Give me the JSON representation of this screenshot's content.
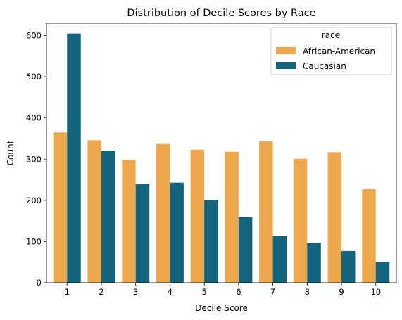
{
  "chart_data": {
    "type": "bar",
    "title": "Distribution of Decile Scores by Race",
    "xlabel": "Decile Score",
    "ylabel": "Count",
    "categories": [
      "1",
      "2",
      "3",
      "4",
      "5",
      "6",
      "7",
      "8",
      "9",
      "10"
    ],
    "ylim": [
      0,
      630
    ],
    "yticks": [
      0,
      100,
      200,
      300,
      400,
      500,
      600
    ],
    "grid": false,
    "legend": {
      "title": "race",
      "placement": "top-right"
    },
    "series": [
      {
        "name": "African-American",
        "color": "#EDA84F",
        "values": [
          365,
          346,
          298,
          337,
          323,
          318,
          343,
          301,
          317,
          227
        ]
      },
      {
        "name": "Caucasian",
        "color": "#12647F",
        "values": [
          605,
          321,
          239,
          243,
          200,
          160,
          113,
          96,
          77,
          50
        ]
      }
    ]
  }
}
